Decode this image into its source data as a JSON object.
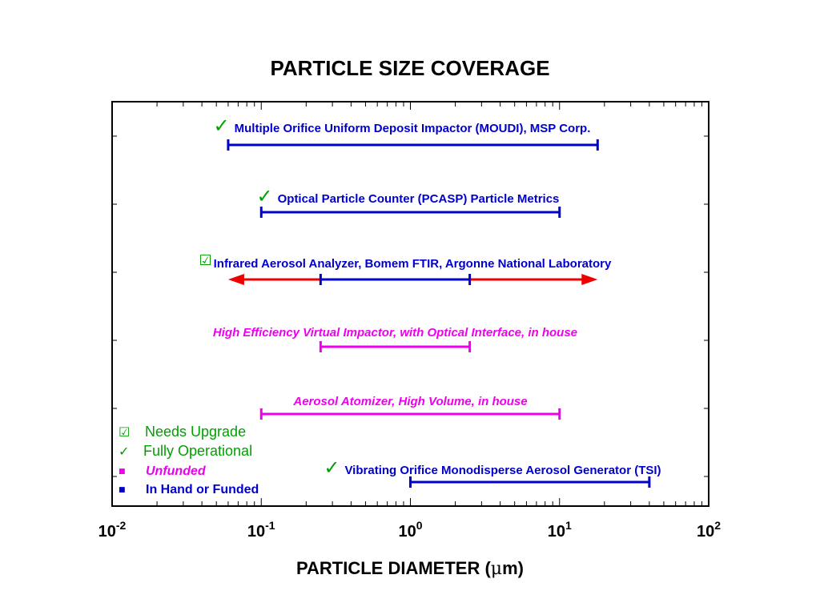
{
  "chart_data": {
    "type": "range",
    "title": "PARTICLE SIZE COVERAGE",
    "xlabel_main": "PARTICLE DIAMETER (",
    "xlabel_mu": "μ",
    "xlabel_end": "m)",
    "x_scale": "log",
    "xlim": [
      0.01,
      100
    ],
    "x_ticks": [
      {
        "value": 0.01,
        "base": "10",
        "exp": "-2"
      },
      {
        "value": 0.1,
        "base": "10",
        "exp": "-1"
      },
      {
        "value": 1,
        "base": "10",
        "exp": "0"
      },
      {
        "value": 10,
        "base": "10",
        "exp": "1"
      },
      {
        "value": 100,
        "base": "10",
        "exp": "2"
      }
    ],
    "colors": {
      "funded": "#0000cc",
      "unfunded": "#ee00ee",
      "extension": "#ee0000",
      "status_check": "#00a000"
    },
    "ranges": [
      {
        "label": "Multiple Orifice Uniform Deposit Impactor (MOUDI), MSP Corp.",
        "status": "Fully Operational",
        "status_symbol": "✓",
        "funding": "In Hand or Funded",
        "min": 0.06,
        "max": 18
      },
      {
        "label": "Optical Particle Counter (PCASP) Particle Metrics",
        "status": "Fully Operational",
        "status_symbol": "✓",
        "funding": "In Hand or Funded",
        "min": 0.1,
        "max": 10
      },
      {
        "label": "Infrared Aerosol Analyzer, Bomem FTIR, Argonne National Laboratory",
        "status": "Needs Upgrade",
        "status_symbol": "☑",
        "funding": "In Hand or Funded",
        "min": 0.25,
        "max": 2.5,
        "extended_min": 0.06,
        "extended_max": 18
      },
      {
        "label": "High Efficiency Virtual Impactor, with Optical Interface, in house",
        "status": "",
        "status_symbol": "",
        "funding": "Unfunded",
        "min": 0.25,
        "max": 2.5
      },
      {
        "label": "Aerosol Atomizer, High Volume, in house",
        "status": "",
        "status_symbol": "",
        "funding": "Unfunded",
        "min": 0.1,
        "max": 10
      },
      {
        "label": "Vibrating Orifice Monodisperse Aerosol Generator (TSI)",
        "status": "Fully Operational",
        "status_symbol": "✓",
        "funding": "In Hand or Funded",
        "min": 1,
        "max": 40
      }
    ],
    "legend": {
      "placement": "bottom-left",
      "items": [
        {
          "symbol": "☑",
          "label": "Needs Upgrade",
          "color": "#00a000",
          "italic": false
        },
        {
          "symbol": "✓",
          "label": "Fully Operational",
          "color": "#00a000",
          "italic": false
        },
        {
          "symbol": "■",
          "label": "Unfunded",
          "color": "#ee00ee",
          "italic": true
        },
        {
          "symbol": "■",
          "label": "In Hand or Funded",
          "color": "#0000cc",
          "italic": false
        }
      ]
    }
  }
}
